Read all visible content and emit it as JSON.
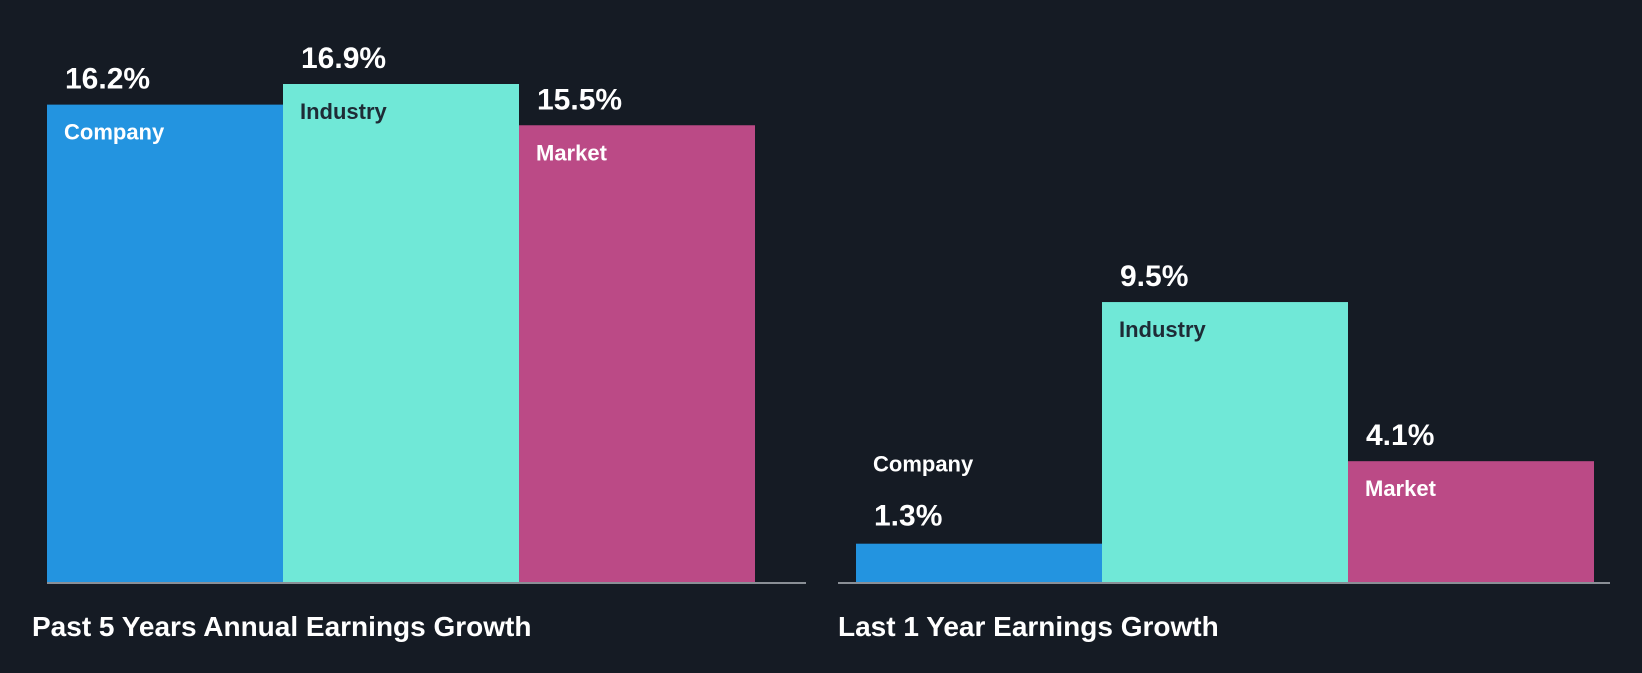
{
  "theme": {
    "background": "#151b24",
    "baseline_color": "#8a8f96",
    "inner_label_dark": "#1e2b36",
    "inner_label_light": "#ffffff",
    "outside_label": "#ffffff"
  },
  "chart_data": [
    {
      "type": "bar",
      "title": "Past 5 Years Annual Earnings Growth",
      "categories": [
        "Company",
        "Industry",
        "Market"
      ],
      "values": [
        16.2,
        16.9,
        15.5
      ],
      "value_labels": [
        "16.2%",
        "16.9%",
        "15.5%"
      ],
      "colors": [
        "#2394e0",
        "#70e8d7",
        "#bb4a86"
      ],
      "ylim": [
        0,
        16.9
      ],
      "xlabel": "",
      "ylabel": "",
      "legend": "none",
      "grid": false
    },
    {
      "type": "bar",
      "title": "Last 1 Year Earnings Growth",
      "categories": [
        "Company",
        "Industry",
        "Market"
      ],
      "values": [
        1.3,
        9.5,
        4.1
      ],
      "value_labels": [
        "1.3%",
        "9.5%",
        "4.1%"
      ],
      "colors": [
        "#2394e0",
        "#70e8d7",
        "#bb4a86"
      ],
      "ylim": [
        0,
        16.9
      ],
      "xlabel": "",
      "ylabel": "",
      "legend": "none",
      "grid": false
    }
  ]
}
